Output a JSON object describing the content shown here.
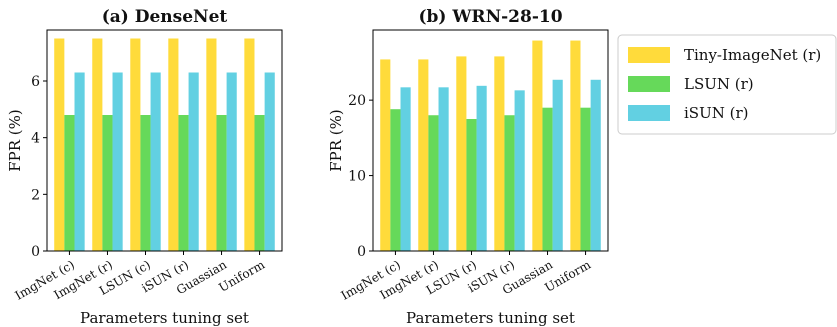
{
  "chart_data": [
    {
      "type": "bar",
      "title": "(a) DenseNet",
      "xlabel": "Parameters tuning set",
      "ylabel": "FPR (%)",
      "categories": [
        "ImgNet (c)",
        "ImgNet (r)",
        "LSUN (c)",
        "iSUN (r)",
        "Guassian",
        "Uniform"
      ],
      "ylim": [
        0,
        7.8
      ],
      "yticks": [
        0,
        2,
        4,
        6
      ],
      "series": [
        {
          "name": "Tiny-ImageNet (r)",
          "values": [
            7.5,
            7.5,
            7.5,
            7.5,
            7.5,
            7.5
          ]
        },
        {
          "name": "LSUN (r)",
          "values": [
            4.8,
            4.8,
            4.8,
            4.8,
            4.8,
            4.8
          ]
        },
        {
          "name": "iSUN (r)",
          "values": [
            6.3,
            6.3,
            6.3,
            6.3,
            6.3,
            6.3
          ]
        }
      ]
    },
    {
      "type": "bar",
      "title": "(b) WRN-28-10",
      "xlabel": "Parameters tuning set",
      "ylabel": "FPR (%)",
      "categories": [
        "ImgNet (c)",
        "ImgNet (r)",
        "LSUN (r)",
        "iSUN (r)",
        "Guassian",
        "Uniform"
      ],
      "ylim": [
        0,
        29.3
      ],
      "yticks": [
        0,
        10,
        20
      ],
      "series": [
        {
          "name": "Tiny-ImageNet (r)",
          "values": [
            25.4,
            25.4,
            25.8,
            25.8,
            27.9,
            27.9
          ]
        },
        {
          "name": "LSUN (r)",
          "values": [
            18.8,
            18.0,
            17.5,
            18.0,
            19.0,
            19.0
          ]
        },
        {
          "name": "iSUN (r)",
          "values": [
            21.7,
            21.7,
            21.9,
            21.3,
            22.7,
            22.7
          ]
        }
      ]
    }
  ],
  "legend": {
    "placement": "right",
    "entries": [
      {
        "label": "Tiny-ImageNet (r)",
        "color": "#FFDB3B"
      },
      {
        "label": "LSUN (r)",
        "color": "#66D95A"
      },
      {
        "label": "iSUN (r)",
        "color": "#62D0E2"
      }
    ]
  },
  "colors": [
    "#FFDB3B",
    "#66D95A",
    "#62D0E2"
  ]
}
